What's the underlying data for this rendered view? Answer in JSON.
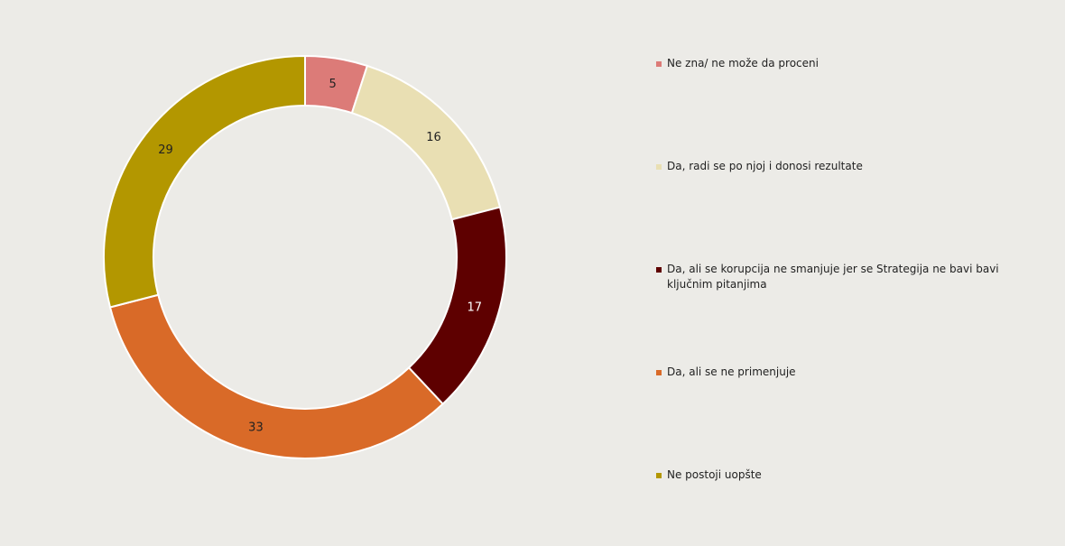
{
  "chart_data": {
    "type": "pie",
    "subtype": "donut",
    "title": "",
    "categories": [
      "Ne zna/ ne može da proceni",
      "Da, radi se po njoj i donosi rezultate",
      "Da, ali se korupcija ne smanjuje jer se Strategija ne bavi bavi ključnim pitanjima",
      "Da, ali se ne primenjuje",
      "Ne postoji uopšte"
    ],
    "values": [
      5,
      16,
      17,
      33,
      29
    ],
    "data_labels": [
      "5",
      "16",
      "17",
      "33",
      "29"
    ],
    "colors": [
      "#dc7b78",
      "#e9dfb3",
      "#5e0000",
      "#d96a28",
      "#b39700"
    ],
    "legend_position": "right"
  }
}
